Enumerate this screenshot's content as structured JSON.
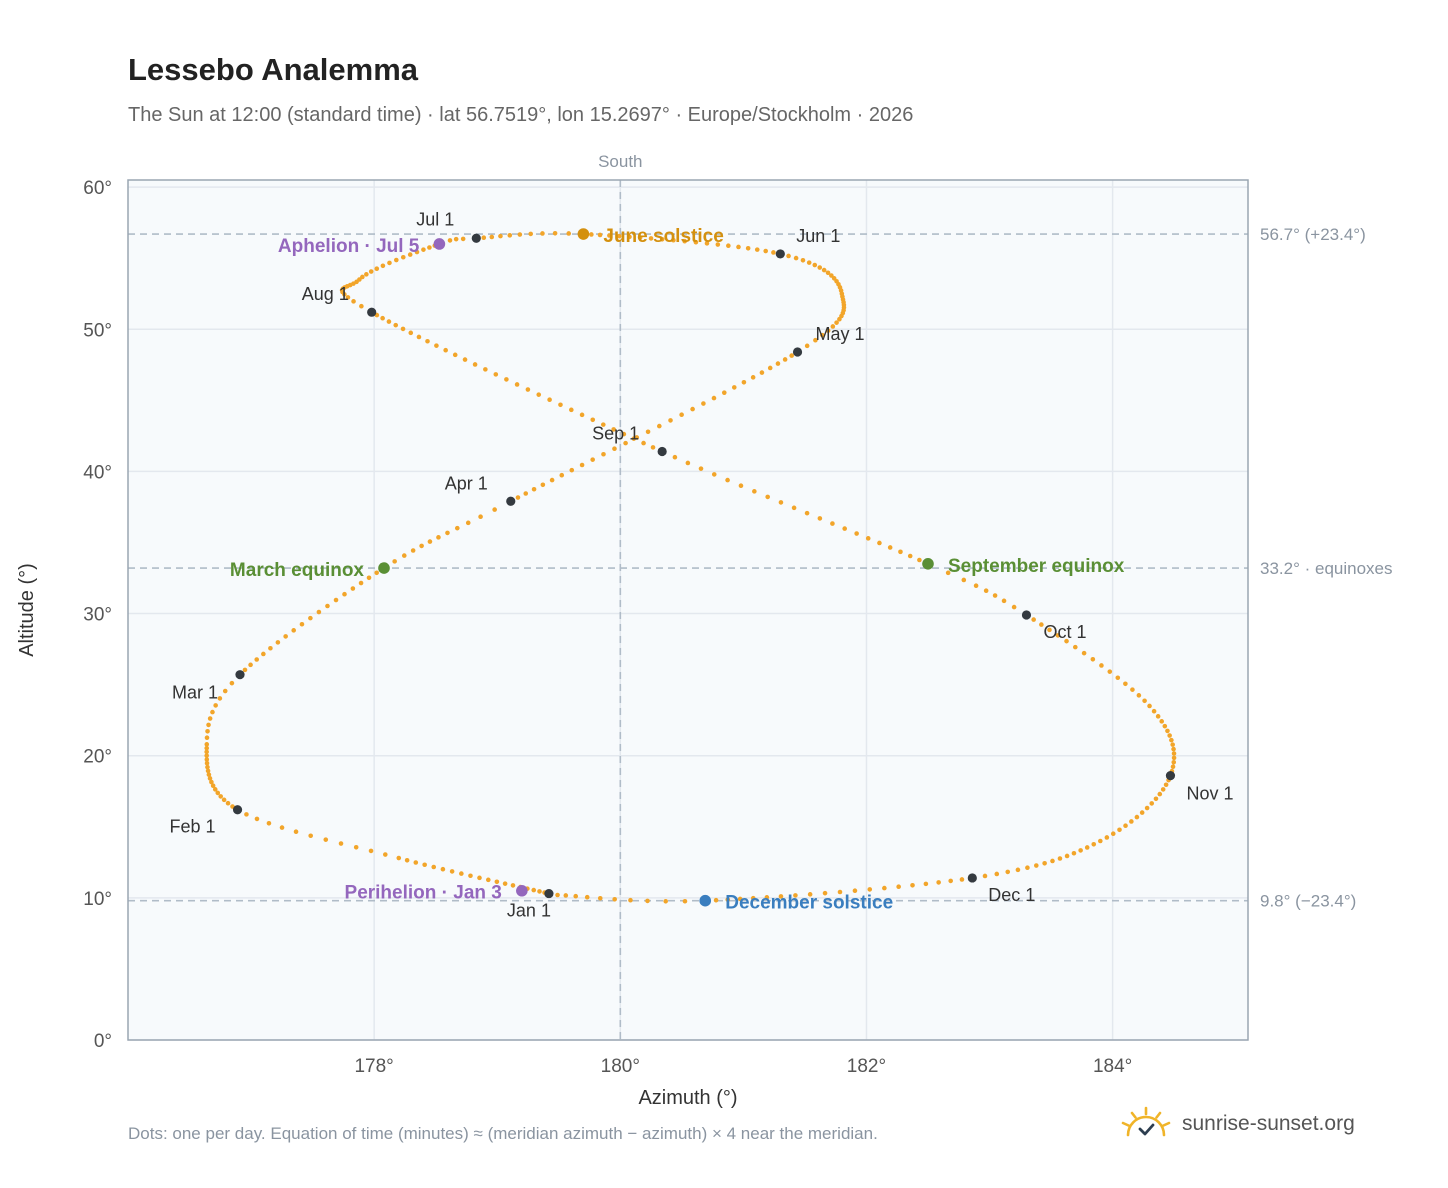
{
  "header": {
    "title": "Lessebo Analemma",
    "subtitle": "The Sun at 12:00 (standard time) · lat 56.7519°, lon 15.2697° · Europe/Stockholm · 2026"
  },
  "footer": {
    "note": "Dots: one per day. Equation of time (minutes) ≈ (meridian azimuth − azimuth) × 4 near the meridian.",
    "brand": "sunrise-sunset.org"
  },
  "colors": {
    "path": "#f2a52a",
    "month_marker": "#343a40",
    "june_solstice": "#d4900e",
    "december_solstice": "#3a7ebf",
    "equinox": "#5a8f35",
    "apsis": "#9467bd",
    "plot_bg": "#f7fafc",
    "grid": "#e3e8ee",
    "reference_line": "#b0bcc8"
  },
  "chart_data": {
    "type": "scatter",
    "xlabel": "Azimuth (°)",
    "ylabel": "Altitude (°)",
    "xlim": [
      176.0,
      185.1
    ],
    "ylim": [
      0,
      60.5
    ],
    "x_ticks": [
      178,
      180,
      182,
      184
    ],
    "x_tick_labels": [
      "178°",
      "180°",
      "182°",
      "184°"
    ],
    "y_ticks": [
      0,
      10,
      20,
      30,
      40,
      50,
      60
    ],
    "y_tick_labels": [
      "0°",
      "10°",
      "20°",
      "30°",
      "40°",
      "50°",
      "60°"
    ],
    "grid": true,
    "vertical_reference": {
      "x": 180,
      "label": "South"
    },
    "horizontal_references": [
      {
        "y": 56.7,
        "label": "56.7° (+23.4°)"
      },
      {
        "y": 33.2,
        "label": "33.2° · equinoxes"
      },
      {
        "y": 9.8,
        "label": "9.8° (−23.4°)"
      }
    ],
    "daily_path": {
      "name": "",
      "anchors": [
        [
          1,
          179.42,
          10.3
        ],
        [
          20,
          178.2,
          12.8
        ],
        [
          32,
          176.89,
          16.2
        ],
        [
          50,
          176.64,
          20.8
        ],
        [
          60,
          176.91,
          25.7
        ],
        [
          79,
          178.08,
          33.2
        ],
        [
          91,
          179.11,
          37.9
        ],
        [
          121,
          181.44,
          48.4
        ],
        [
          137,
          181.8,
          52.5
        ],
        [
          152,
          181.3,
          55.3
        ],
        [
          172,
          179.7,
          56.7
        ],
        [
          182,
          178.83,
          56.4
        ],
        [
          186,
          178.53,
          56.0
        ],
        [
          200,
          177.88,
          53.5
        ],
        [
          213,
          177.98,
          51.2
        ],
        [
          244,
          180.34,
          41.4
        ],
        [
          266,
          182.5,
          33.5
        ],
        [
          274,
          183.3,
          29.9
        ],
        [
          290,
          184.3,
          23.5
        ],
        [
          305,
          184.47,
          18.6
        ],
        [
          320,
          183.9,
          14.0
        ],
        [
          335,
          182.86,
          11.4
        ],
        [
          355,
          180.69,
          9.8
        ],
        [
          365,
          179.49,
          10.2
        ]
      ]
    },
    "month_markers": [
      {
        "label": "Jan 1",
        "azimuth": 179.42,
        "altitude": 10.3
      },
      {
        "label": "Feb 1",
        "azimuth": 176.89,
        "altitude": 16.2
      },
      {
        "label": "Mar 1",
        "azimuth": 176.91,
        "altitude": 25.7
      },
      {
        "label": "Apr 1",
        "azimuth": 179.11,
        "altitude": 37.9
      },
      {
        "label": "May 1",
        "azimuth": 181.44,
        "altitude": 48.4
      },
      {
        "label": "Jun 1",
        "azimuth": 181.3,
        "altitude": 55.3
      },
      {
        "label": "Jul 1",
        "azimuth": 178.83,
        "altitude": 56.4
      },
      {
        "label": "Aug 1",
        "azimuth": 177.98,
        "altitude": 51.2
      },
      {
        "label": "Sep 1",
        "azimuth": 180.34,
        "altitude": 41.4
      },
      {
        "label": "Oct 1",
        "azimuth": 183.3,
        "altitude": 29.9
      },
      {
        "label": "Nov 1",
        "azimuth": 184.47,
        "altitude": 18.6
      },
      {
        "label": "Dec 1",
        "azimuth": 182.86,
        "altitude": 11.4
      }
    ],
    "events": [
      {
        "label": "June solstice",
        "azimuth": 179.7,
        "altitude": 56.7,
        "kind": "june_solstice"
      },
      {
        "label": "December solstice",
        "azimuth": 180.69,
        "altitude": 9.8,
        "kind": "december_solstice"
      },
      {
        "label": "March equinox",
        "azimuth": 178.08,
        "altitude": 33.2,
        "kind": "equinox"
      },
      {
        "label": "September equinox",
        "azimuth": 182.5,
        "altitude": 33.5,
        "kind": "equinox"
      },
      {
        "label": "Aphelion · Jul 5",
        "azimuth": 178.53,
        "altitude": 56.0,
        "kind": "apsis"
      },
      {
        "label": "Perihelion · Jan 3",
        "azimuth": 179.2,
        "altitude": 10.5,
        "kind": "apsis"
      }
    ]
  }
}
